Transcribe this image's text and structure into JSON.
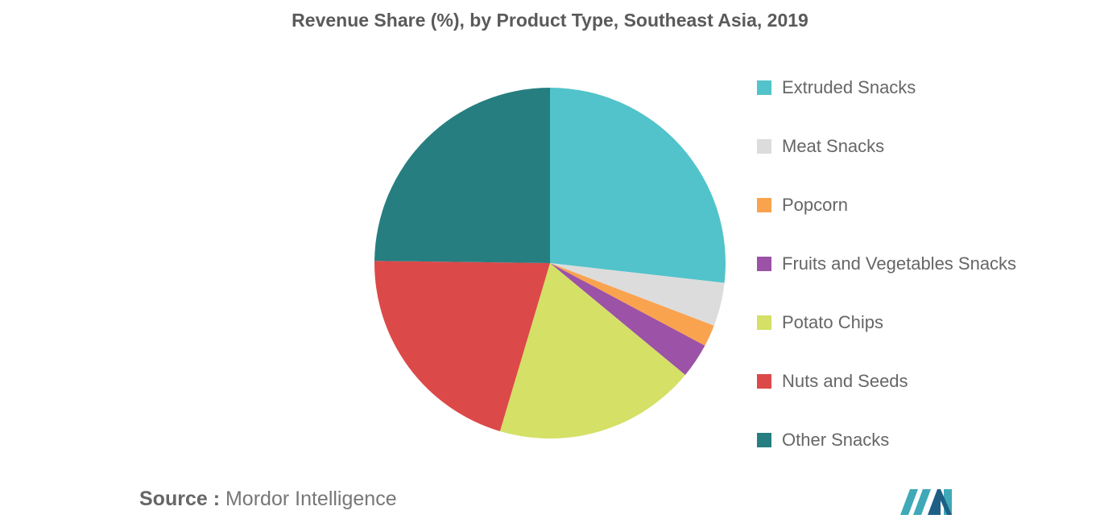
{
  "chart_data": {
    "type": "pie",
    "title": "Revenue Share (%), by Product Type, Southeast Asia, 2019",
    "start_angle_deg": 0,
    "direction": "clockwise",
    "legend_position": "right",
    "slices": [
      {
        "label": "Extruded Snacks",
        "value": 26.8,
        "color": "#52C3CA"
      },
      {
        "label": "Meat Snacks",
        "value": 4.0,
        "color": "#DCDCDC"
      },
      {
        "label": "Popcorn",
        "value": 2.0,
        "color": "#F9A34F"
      },
      {
        "label": "Fruits and Vegetables Snacks",
        "value": 3.2,
        "color": "#9C52A6"
      },
      {
        "label": "Potato Chips",
        "value": 18.6,
        "color": "#D4E066"
      },
      {
        "label": "Nuts and Seeds",
        "value": 20.6,
        "color": "#DC4949"
      },
      {
        "label": "Other Snacks",
        "value": 24.8,
        "color": "#267E80"
      }
    ]
  },
  "source": {
    "label": "Source :",
    "text": "Mordor Intelligence"
  },
  "logo": {
    "icon": "mordor-intelligence-logo-icon",
    "colors": [
      "#3FA9B8",
      "#1F5F86"
    ]
  }
}
